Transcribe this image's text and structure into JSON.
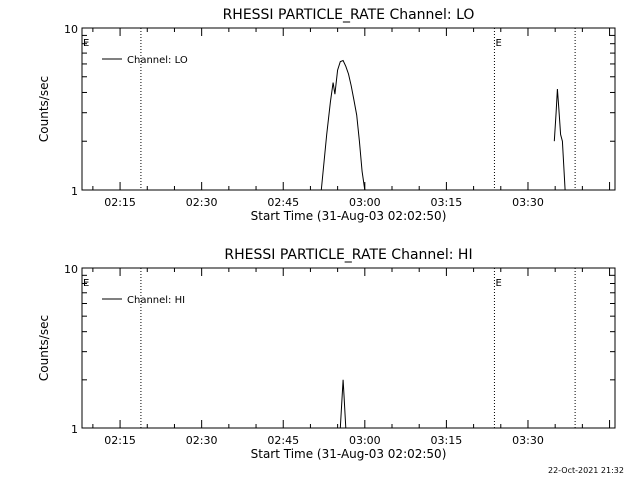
{
  "footer": {
    "timestamp": "22-Oct-2021 21:32"
  },
  "chart_data": [
    {
      "type": "line",
      "title": "RHESSI PARTICLE_RATE Channel: LO",
      "xlabel": "Start Time (31-Aug-03 02:02:50)",
      "ylabel": "Counts/sec",
      "y_scale": "log",
      "ylim": [
        1,
        10
      ],
      "y_ticks": [
        "1",
        "10"
      ],
      "x_ticks": [
        "02:15",
        "02:30",
        "02:45",
        "03:00",
        "03:15",
        "03:30"
      ],
      "xlim": [
        "02:08:00",
        "03:46:00"
      ],
      "vlines": [
        "02:18:50",
        "03:23:50",
        "03:38:40"
      ],
      "markers": [
        {
          "text": "E",
          "x": "02:08:00"
        },
        {
          "text": "E",
          "x": "03:23:50"
        }
      ],
      "legend": {
        "placement": "top-left"
      },
      "series": [
        {
          "name": "Channel: LO",
          "points": [
            [
              "02:52:00",
              1.0
            ],
            [
              "02:53:00",
              2.2
            ],
            [
              "02:53:40",
              3.5
            ],
            [
              "02:54:10",
              4.6
            ],
            [
              "02:54:30",
              3.9
            ],
            [
              "02:55:00",
              5.5
            ],
            [
              "02:55:30",
              6.2
            ],
            [
              "02:56:00",
              6.3
            ],
            [
              "02:56:30",
              5.8
            ],
            [
              "02:57:00",
              5.2
            ],
            [
              "02:57:30",
              4.4
            ],
            [
              "02:58:00",
              3.6
            ],
            [
              "02:58:30",
              2.9
            ],
            [
              "02:59:00",
              2.0
            ],
            [
              "02:59:30",
              1.3
            ],
            [
              "03:00:00",
              1.0
            ],
            null,
            [
              "03:34:50",
              2.0
            ],
            [
              "03:35:10",
              3.0
            ],
            [
              "03:35:25",
              4.2
            ],
            [
              "03:35:40",
              3.2
            ],
            [
              "03:36:00",
              2.2
            ],
            [
              "03:36:20",
              2.0
            ],
            [
              "03:36:50",
              1.0
            ]
          ]
        }
      ]
    },
    {
      "type": "line",
      "title": "RHESSI PARTICLE_RATE Channel: HI",
      "xlabel": "Start Time (31-Aug-03 02:02:50)",
      "ylabel": "Counts/sec",
      "y_scale": "log",
      "ylim": [
        1,
        10
      ],
      "y_ticks": [
        "1",
        "10"
      ],
      "x_ticks": [
        "02:15",
        "02:30",
        "02:45",
        "03:00",
        "03:15",
        "03:30"
      ],
      "xlim": [
        "02:08:00",
        "03:46:00"
      ],
      "vlines": [
        "02:18:50",
        "03:23:50",
        "03:38:40"
      ],
      "markers": [
        {
          "text": "E",
          "x": "02:08:00"
        },
        {
          "text": "E",
          "x": "03:23:50"
        }
      ],
      "legend": {
        "placement": "top-left"
      },
      "series": [
        {
          "name": "Channel: HI",
          "points": [
            [
              "02:55:30",
              1.0
            ],
            [
              "02:55:50",
              1.6
            ],
            [
              "02:56:00",
              2.0
            ],
            [
              "02:56:10",
              1.6
            ],
            [
              "02:56:30",
              1.0
            ]
          ]
        }
      ]
    }
  ]
}
